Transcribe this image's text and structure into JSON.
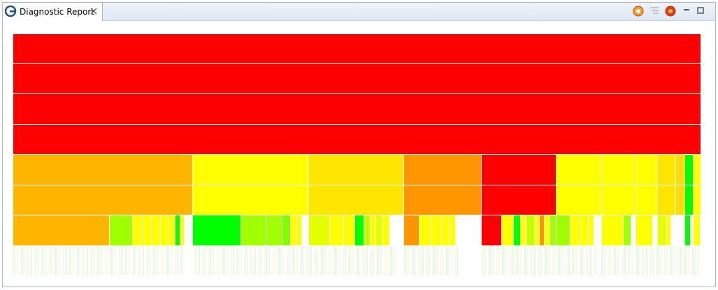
{
  "tab": {
    "title": "Diagnostic Report"
  }
}
